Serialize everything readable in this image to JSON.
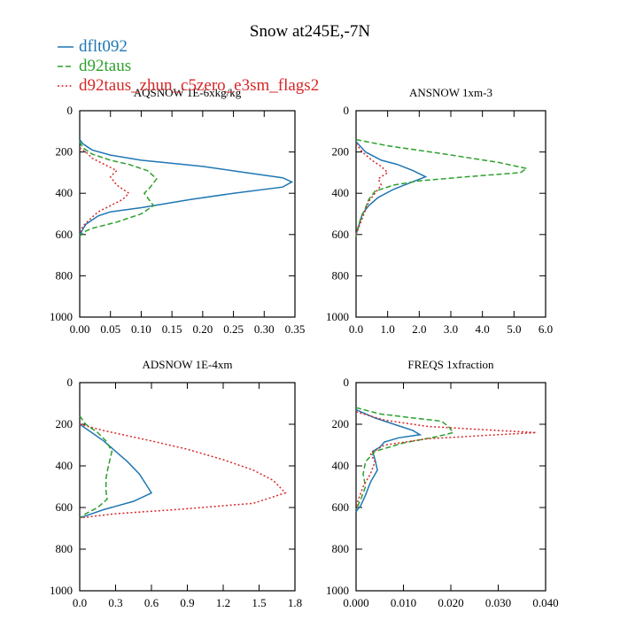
{
  "chart_data": {
    "title": "Snow at245E,-7N",
    "legend": {
      "placement": "top-left",
      "entries": [
        {
          "name": "dflt092",
          "color": "#1f77b4",
          "style": "solid"
        },
        {
          "name": "d92taus",
          "color": "#2ca02c",
          "style": "dashed"
        },
        {
          "name": "d92taus_zhun_c5zero_e3sm_flags2",
          "color": "#d62728",
          "style": "dotted"
        }
      ]
    },
    "panels": [
      {
        "type": "line",
        "title": "AQSNOW  1E-6xkg/kg",
        "xlim": [
          0,
          0.35
        ],
        "xticks": [
          0.0,
          0.05,
          0.1,
          0.15,
          0.2,
          0.25,
          0.3,
          0.35
        ],
        "xticklabels": [
          "0.00",
          "0.05",
          "0.10",
          "0.15",
          "0.20",
          "0.25",
          "0.30",
          "0.35"
        ],
        "ylim": [
          1000,
          0
        ],
        "yticks": [
          0,
          200,
          400,
          600,
          800,
          1000
        ],
        "yticklabels": [
          "0",
          "200",
          "400",
          "600",
          "800",
          "1000"
        ],
        "series": [
          {
            "name": "dflt092",
            "values": [
              [
                0,
                140
              ],
              [
                0.005,
                160
              ],
              [
                0.02,
                190
              ],
              [
                0.05,
                215
              ],
              [
                0.1,
                240
              ],
              [
                0.2,
                270
              ],
              [
                0.27,
                300
              ],
              [
                0.33,
                325
              ],
              [
                0.345,
                345
              ],
              [
                0.33,
                370
              ],
              [
                0.25,
                400
              ],
              [
                0.18,
                430
              ],
              [
                0.1,
                470
              ],
              [
                0.05,
                490
              ],
              [
                0.03,
                510
              ],
              [
                0.01,
                550
              ],
              [
                0.004,
                580
              ],
              [
                0,
                600
              ]
            ]
          },
          {
            "name": "d92taus",
            "values": [
              [
                0,
                150
              ],
              [
                0.005,
                180
              ],
              [
                0.02,
                210
              ],
              [
                0.05,
                240
              ],
              [
                0.08,
                260
              ],
              [
                0.11,
                290
              ],
              [
                0.125,
                330
              ],
              [
                0.115,
                370
              ],
              [
                0.105,
                400
              ],
              [
                0.12,
                460
              ],
              [
                0.1,
                500
              ],
              [
                0.06,
                540
              ],
              [
                0.02,
                570
              ],
              [
                0.005,
                590
              ],
              [
                0,
                610
              ]
            ]
          },
          {
            "name": "d92taus_zhun_c5zero_e3sm_flags2",
            "values": [
              [
                0,
                180
              ],
              [
                0.01,
                200
              ],
              [
                0.02,
                230
              ],
              [
                0.04,
                260
              ],
              [
                0.06,
                290
              ],
              [
                0.05,
                320
              ],
              [
                0.06,
                360
              ],
              [
                0.08,
                400
              ],
              [
                0.07,
                430
              ],
              [
                0.05,
                460
              ],
              [
                0.03,
                490
              ],
              [
                0.015,
                530
              ],
              [
                0.005,
                560
              ],
              [
                0,
                590
              ]
            ]
          }
        ]
      },
      {
        "type": "line",
        "title": "ANSNOW  1xm-3",
        "xlim": [
          0,
          6
        ],
        "xticks": [
          0,
          1,
          2,
          3,
          4,
          5,
          6
        ],
        "xticklabels": [
          "0.0",
          "1.0",
          "2.0",
          "3.0",
          "4.0",
          "5.0",
          "6.0"
        ],
        "ylim": [
          1000,
          0
        ],
        "yticks": [
          0,
          200,
          400,
          600,
          800,
          1000
        ],
        "yticklabels": [
          "0",
          "200",
          "400",
          "600",
          "800",
          "1000"
        ],
        "series": [
          {
            "name": "dflt092",
            "values": [
              [
                0,
                150
              ],
              [
                0.3,
                200
              ],
              [
                0.8,
                240
              ],
              [
                1.3,
                260
              ],
              [
                1.8,
                290
              ],
              [
                2.2,
                320
              ],
              [
                1.7,
                350
              ],
              [
                1.2,
                380
              ],
              [
                0.7,
                420
              ],
              [
                0.4,
                460
              ],
              [
                0.2,
                500
              ],
              [
                0.1,
                550
              ],
              [
                0,
                600
              ]
            ]
          },
          {
            "name": "d92taus",
            "values": [
              [
                0,
                140
              ],
              [
                1.0,
                170
              ],
              [
                2.8,
                210
              ],
              [
                4.5,
                250
              ],
              [
                5.4,
                280
              ],
              [
                5.2,
                300
              ],
              [
                3.5,
                320
              ],
              [
                2.0,
                340
              ],
              [
                1.2,
                360
              ],
              [
                0.6,
                390
              ],
              [
                0.4,
                430
              ],
              [
                0.3,
                470
              ],
              [
                0.15,
                520
              ],
              [
                0.05,
                570
              ],
              [
                0,
                610
              ]
            ]
          },
          {
            "name": "d92taus_zhun_c5zero_e3sm_flags2",
            "values": [
              [
                0,
                160
              ],
              [
                0.2,
                200
              ],
              [
                0.5,
                240
              ],
              [
                0.8,
                270
              ],
              [
                1.0,
                300
              ],
              [
                0.7,
                330
              ],
              [
                0.8,
                360
              ],
              [
                0.6,
                400
              ],
              [
                0.4,
                440
              ],
              [
                0.3,
                480
              ],
              [
                0.2,
                520
              ],
              [
                0.1,
                560
              ],
              [
                0,
                600
              ]
            ]
          }
        ]
      },
      {
        "type": "line",
        "title": "ADSNOW  1E-4xm",
        "xlim": [
          0,
          1.8
        ],
        "xticks": [
          0,
          0.3,
          0.6,
          0.9,
          1.2,
          1.5,
          1.8
        ],
        "xticklabels": [
          "0.0",
          "0.3",
          "0.6",
          "0.9",
          "1.2",
          "1.5",
          "1.8"
        ],
        "ylim": [
          1000,
          0
        ],
        "yticks": [
          0,
          200,
          400,
          600,
          800,
          1000
        ],
        "yticklabels": [
          "0",
          "200",
          "400",
          "600",
          "800",
          "1000"
        ],
        "series": [
          {
            "name": "dflt092",
            "values": [
              [
                0,
                200
              ],
              [
                0.1,
                240
              ],
              [
                0.2,
                280
              ],
              [
                0.3,
                330
              ],
              [
                0.4,
                380
              ],
              [
                0.5,
                440
              ],
              [
                0.6,
                530
              ],
              [
                0.45,
                570
              ],
              [
                0.2,
                610
              ],
              [
                0.05,
                640
              ],
              [
                0,
                650
              ]
            ]
          },
          {
            "name": "d92taus",
            "values": [
              [
                0,
                160
              ],
              [
                0.05,
                200
              ],
              [
                0.15,
                240
              ],
              [
                0.22,
                280
              ],
              [
                0.27,
                330
              ],
              [
                0.24,
                400
              ],
              [
                0.22,
                460
              ],
              [
                0.22,
                520
              ],
              [
                0.23,
                560
              ],
              [
                0.15,
                600
              ],
              [
                0.05,
                630
              ],
              [
                0,
                650
              ]
            ]
          },
          {
            "name": "d92taus_zhun_c5zero_e3sm_flags2",
            "values": [
              [
                0,
                200
              ],
              [
                0.2,
                230
              ],
              [
                0.6,
                280
              ],
              [
                0.9,
                320
              ],
              [
                1.2,
                370
              ],
              [
                1.45,
                420
              ],
              [
                1.62,
                470
              ],
              [
                1.72,
                530
              ],
              [
                1.45,
                580
              ],
              [
                0.8,
                610
              ],
              [
                0.3,
                630
              ],
              [
                0,
                650
              ]
            ]
          }
        ]
      },
      {
        "type": "line",
        "title": "FREQS  1xfraction",
        "xlim": [
          0,
          0.04
        ],
        "xticks": [
          0,
          0.01,
          0.02,
          0.03,
          0.04
        ],
        "xticklabels": [
          "0.000",
          "0.010",
          "0.020",
          "0.030",
          "0.040"
        ],
        "ylim": [
          1000,
          0
        ],
        "yticks": [
          0,
          200,
          400,
          600,
          800,
          1000
        ],
        "yticklabels": [
          "0",
          "200",
          "400",
          "600",
          "800",
          "1000"
        ],
        "series": [
          {
            "name": "dflt092",
            "values": [
              [
                0,
                130
              ],
              [
                0.004,
                170
              ],
              [
                0.008,
                200
              ],
              [
                0.012,
                230
              ],
              [
                0.0135,
                250
              ],
              [
                0.009,
                265
              ],
              [
                0.006,
                285
              ],
              [
                0.005,
                310
              ],
              [
                0.0035,
                330
              ],
              [
                0.004,
                370
              ],
              [
                0.0045,
                420
              ],
              [
                0.003,
                480
              ],
              [
                0.002,
                540
              ],
              [
                0.001,
                590
              ],
              [
                0,
                620
              ]
            ]
          },
          {
            "name": "d92taus",
            "values": [
              [
                0,
                120
              ],
              [
                0.005,
                150
              ],
              [
                0.012,
                170
              ],
              [
                0.018,
                185
              ],
              [
                0.0195,
                210
              ],
              [
                0.0205,
                240
              ],
              [
                0.017,
                260
              ],
              [
                0.01,
                290
              ],
              [
                0.004,
                330
              ],
              [
                0.002,
                380
              ],
              [
                0.0015,
                440
              ],
              [
                0.002,
                500
              ],
              [
                0.001,
                560
              ],
              [
                0,
                610
              ]
            ]
          },
          {
            "name": "d92taus_zhun_c5zero_e3sm_flags2",
            "values": [
              [
                0,
                140
              ],
              [
                0.006,
                180
              ],
              [
                0.015,
                210
              ],
              [
                0.03,
                230
              ],
              [
                0.038,
                240
              ],
              [
                0.03,
                250
              ],
              [
                0.015,
                270
              ],
              [
                0.006,
                300
              ],
              [
                0.003,
                340
              ],
              [
                0.004,
                380
              ],
              [
                0.003,
                440
              ],
              [
                0.0015,
                500
              ],
              [
                0.0005,
                560
              ],
              [
                0,
                600
              ]
            ]
          }
        ]
      }
    ]
  }
}
